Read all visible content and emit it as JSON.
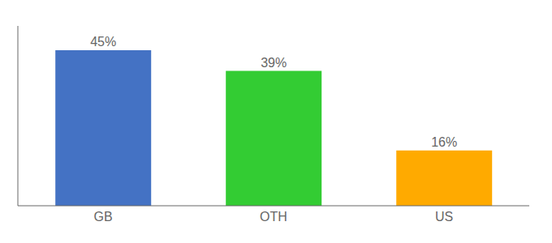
{
  "chart_data": {
    "type": "bar",
    "categories": [
      "GB",
      "OTH",
      "US"
    ],
    "values": [
      45,
      39,
      16
    ],
    "value_labels": [
      "45%",
      "39%",
      "16%"
    ],
    "data_labels": true,
    "colors": [
      "#4472C4",
      "#33CC33",
      "#FFAA00"
    ],
    "ylim": [
      0,
      52
    ],
    "tick_labels": "x",
    "grid": false
  }
}
